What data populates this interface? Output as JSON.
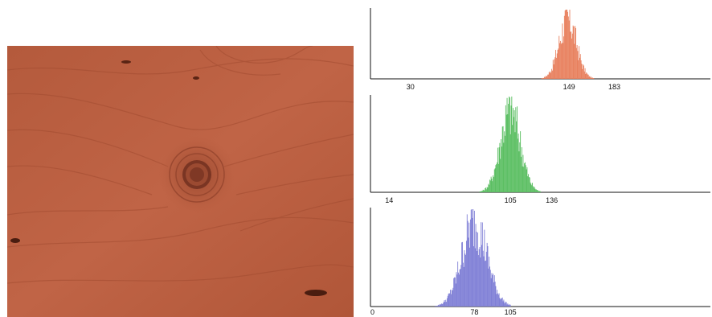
{
  "wood_photo": {
    "description_icon": "wood-grain-image",
    "base_color": "#b85c3e"
  },
  "chart_data": [
    {
      "type": "bar",
      "title": "",
      "channel_color": "#e8805e",
      "xlim": [
        0,
        255
      ],
      "x_ticks": [
        30,
        149,
        183
      ],
      "peak_value": 149,
      "spread": [
        120,
        183
      ],
      "shape": {
        "center": 148,
        "sigma": 6.5
      }
    },
    {
      "type": "bar",
      "title": "",
      "channel_color": "#5cbf63",
      "xlim": [
        0,
        255
      ],
      "x_ticks": [
        14,
        105,
        136
      ],
      "peak_value": 105,
      "spread": [
        70,
        136
      ],
      "shape": {
        "center": 105,
        "sigma": 7.5
      }
    },
    {
      "type": "bar",
      "title": "",
      "channel_color": "#7f7fd6",
      "xlim": [
        0,
        255
      ],
      "x_ticks": [
        0,
        78,
        105
      ],
      "peak_value": 78,
      "spread": [
        40,
        105
      ],
      "shape": {
        "center": 78,
        "sigma": 9.5
      }
    }
  ]
}
